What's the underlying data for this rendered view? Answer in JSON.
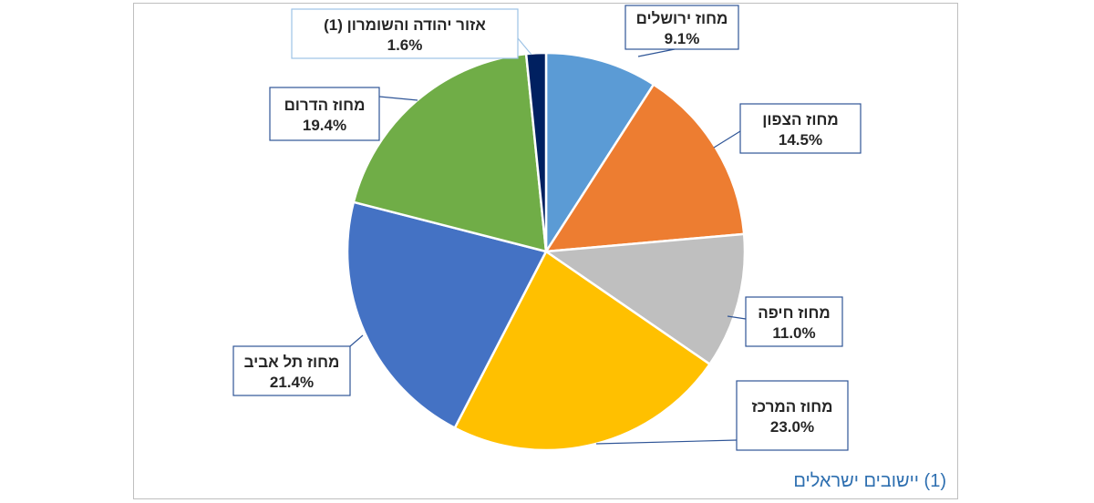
{
  "chart_data": {
    "type": "pie",
    "title": "",
    "slices": [
      {
        "label": "מחוז ירושלים",
        "value": 9.1,
        "display": "9.1%",
        "color": "#5b9bd5"
      },
      {
        "label": "מחוז הצפון",
        "value": 14.5,
        "display": "14.5%",
        "color": "#ed7d31"
      },
      {
        "label": "מחוז חיפה",
        "value": 11.0,
        "display": "11.0%",
        "color": "#bfbfbf"
      },
      {
        "label": "מחוז המרכז",
        "value": 23.0,
        "display": "23.0%",
        "color": "#ffc000"
      },
      {
        "label": "מחוז תל אביב",
        "value": 21.4,
        "display": "21.4%",
        "color": "#4472c4"
      },
      {
        "label": "מחוז הדרום",
        "value": 19.4,
        "display": "19.4%",
        "color": "#70ad47"
      },
      {
        "label": "אזור יהודה והשומרון (1)",
        "value": 1.6,
        "display": "1.6%",
        "color": "#002060"
      }
    ]
  },
  "footnote": "(1) יישובים ישראלים"
}
